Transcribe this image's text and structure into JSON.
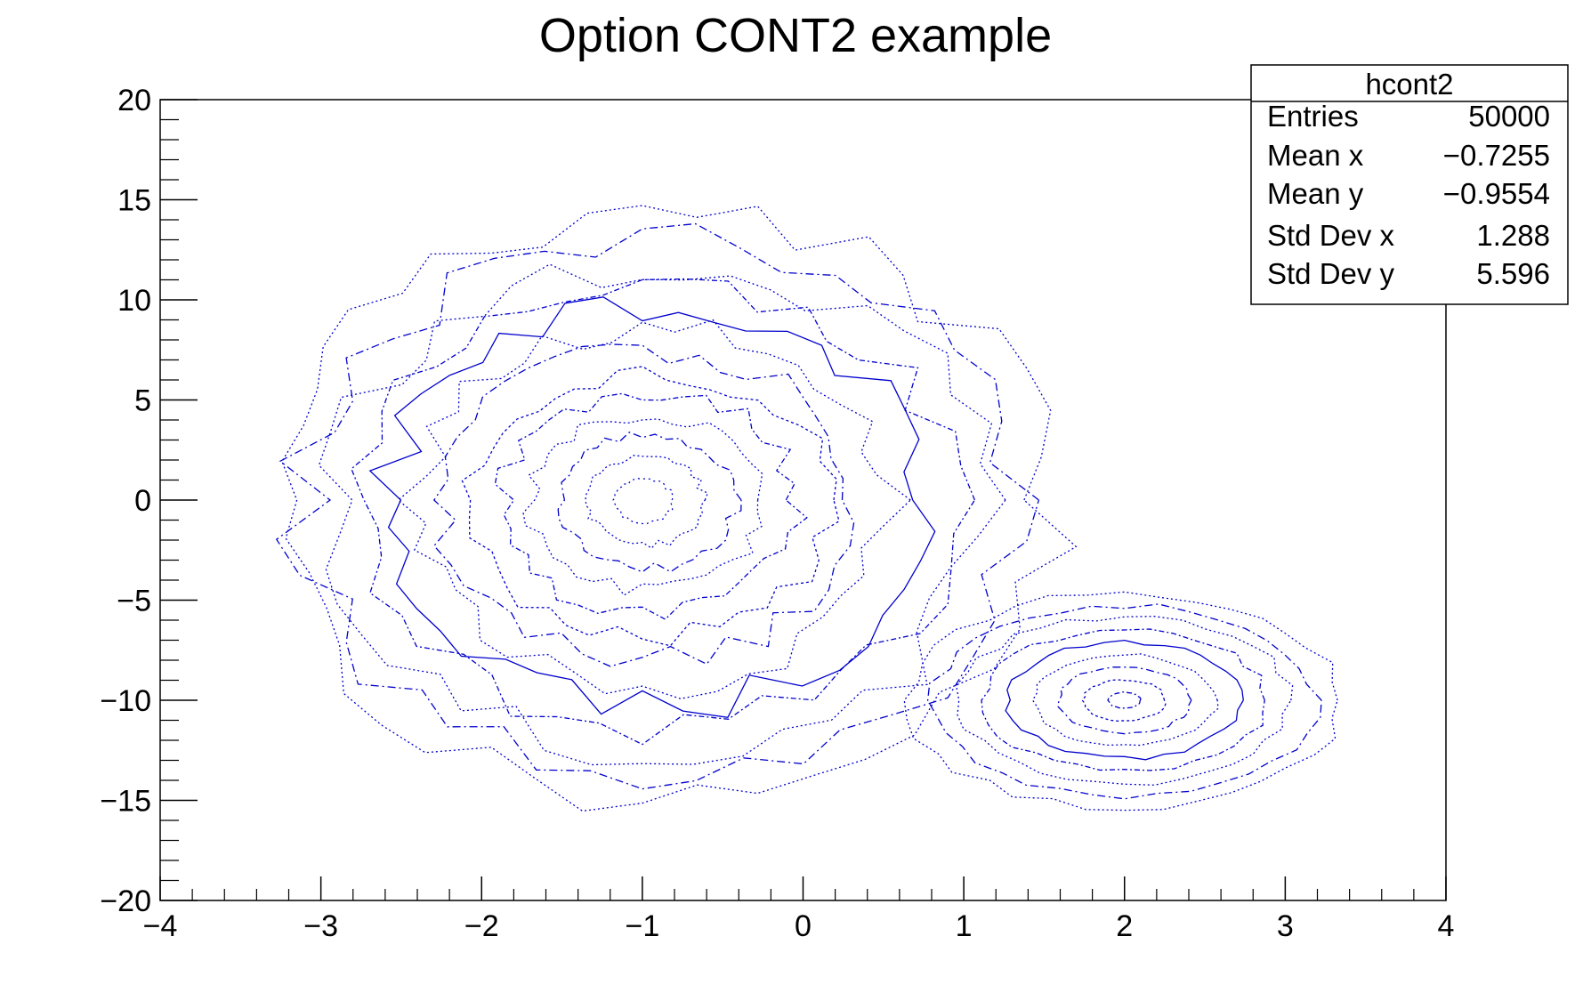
{
  "chart_data": {
    "type": "contour",
    "title": "Option CONT2 example",
    "xlim": [
      -4,
      4
    ],
    "ylim": [
      -20,
      20
    ],
    "x_ticks": [
      "−4",
      "−3",
      "−2",
      "−1",
      "0",
      "1",
      "2",
      "3",
      "4"
    ],
    "y_ticks": [
      "−20",
      "−15",
      "−10",
      "−5",
      "0",
      "5",
      "10",
      "15",
      "20"
    ],
    "line_color": "#0000cc",
    "stats_box": {
      "name": "hcont2",
      "rows": [
        {
          "label": "Entries",
          "value": "50000"
        },
        {
          "label": "Mean x",
          "value": "−0.7255"
        },
        {
          "label": "Mean y",
          "value": "−0.9554"
        },
        {
          "label": "Std Dev x",
          "value": "1.288"
        },
        {
          "label": "Std Dev y",
          "value": "5.596"
        }
      ]
    },
    "components": [
      {
        "cx": -1.0,
        "cy": 0.0,
        "sx": 1.0,
        "sy": 6.0,
        "levels": 13
      },
      {
        "cx": 2.0,
        "cy": -10.0,
        "sx": 0.5,
        "sy": 2.0,
        "levels": 9
      }
    ]
  }
}
